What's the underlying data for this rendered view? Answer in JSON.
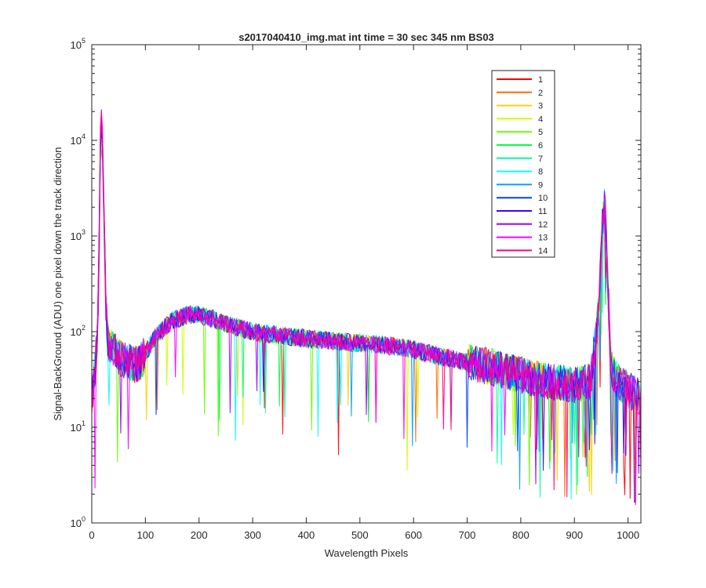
{
  "figure": {
    "title": "s2017040410_img.mat int time = 30 sec  345 nm BS03",
    "xlabel": "Wavelength Pixels",
    "ylabel": "Signal-BackGround (ADU) one pixel down the track direction"
  },
  "chart_data": {
    "type": "line",
    "title": "s2017040410_img.mat int time = 30 sec  345 nm BS03",
    "xlabel": "Wavelength Pixels",
    "ylabel": "Signal-BackGround (ADU) one pixel down the track direction",
    "xlim": [
      0,
      1024
    ],
    "ylim": [
      1,
      100000
    ],
    "yscale": "log",
    "grid": false,
    "legend_position": "top-right",
    "xticks": [
      0,
      100,
      200,
      300,
      400,
      500,
      600,
      700,
      800,
      900,
      1000
    ],
    "xtick_labels": [
      "0",
      "100",
      "200",
      "300",
      "400",
      "500",
      "600",
      "700",
      "800",
      "900",
      "1000"
    ],
    "yticks": [
      1,
      10,
      100,
      1000,
      10000,
      100000
    ],
    "ytick_labels": [
      {
        "base": "10",
        "exp": "0"
      },
      {
        "base": "10",
        "exp": "1"
      },
      {
        "base": "10",
        "exp": "2"
      },
      {
        "base": "10",
        "exp": "3"
      },
      {
        "base": "10",
        "exp": "4"
      },
      {
        "base": "10",
        "exp": "5"
      }
    ],
    "series_profile": {
      "x": [
        0,
        5,
        10,
        13,
        15,
        18,
        20,
        23,
        26,
        30,
        40,
        50,
        60,
        70,
        80,
        90,
        100,
        120,
        150,
        180,
        200,
        220,
        250,
        300,
        350,
        400,
        450,
        500,
        550,
        600,
        650,
        700,
        750,
        800,
        850,
        900,
        930,
        945,
        950,
        953,
        956,
        959,
        962,
        966,
        970,
        980,
        1000,
        1024
      ],
      "y": [
        20,
        35,
        80,
        400,
        3000,
        14000,
        10000,
        1500,
        200,
        80,
        65,
        55,
        50,
        48,
        45,
        48,
        60,
        90,
        130,
        150,
        150,
        140,
        120,
        100,
        90,
        85,
        80,
        75,
        72,
        65,
        55,
        48,
        42,
        35,
        30,
        28,
        30,
        150,
        600,
        1800,
        2200,
        1200,
        400,
        80,
        40,
        30,
        25,
        20
      ]
    },
    "series": [
      {
        "name": "1",
        "color": "#ff0000",
        "peak": 12000,
        "peak2": 2000
      },
      {
        "name": "2",
        "color": "#ff6a00",
        "peak": 11000,
        "peak2": 1900
      },
      {
        "name": "3",
        "color": "#ffd000",
        "peak": 10500,
        "peak2": 1800
      },
      {
        "name": "4",
        "color": "#c8ff00",
        "peak": 11500,
        "peak2": 1900
      },
      {
        "name": "5",
        "color": "#66ff00",
        "peak": 12500,
        "peak2": 2100
      },
      {
        "name": "6",
        "color": "#00ff40",
        "peak": 13000,
        "peak2": 2000
      },
      {
        "name": "7",
        "color": "#00ffa0",
        "peak": 12000,
        "peak2": 2200
      },
      {
        "name": "8",
        "color": "#00ffff",
        "peak": 13500,
        "peak2": 2600
      },
      {
        "name": "9",
        "color": "#00a0ff",
        "peak": 12500,
        "peak2": 2300
      },
      {
        "name": "10",
        "color": "#0040ff",
        "peak": 14000,
        "peak2": 2100
      },
      {
        "name": "11",
        "color": "#4000ff",
        "peak": 15000,
        "peak2": 2000
      },
      {
        "name": "12",
        "color": "#a000ff",
        "peak": 17000,
        "peak2": 2200
      },
      {
        "name": "13",
        "color": "#ff00ff",
        "peak": 15500,
        "peak2": 2000
      },
      {
        "name": "14",
        "color": "#ff0080",
        "peak": 14000,
        "peak2": 2100
      }
    ]
  }
}
